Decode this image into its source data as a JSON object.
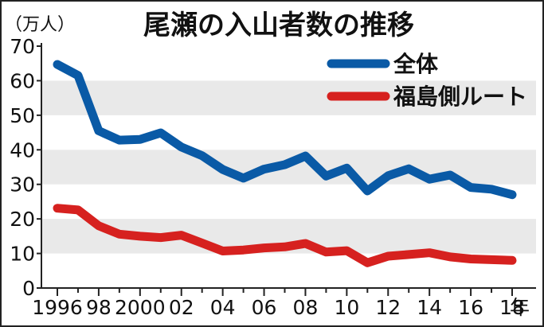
{
  "chart_data": {
    "type": "line",
    "title": "尾瀬の入山者数の推移",
    "ylabel": "（万人）",
    "year_suffix": "年",
    "ylim": [
      0,
      70
    ],
    "y_ticks": [
      0,
      10,
      20,
      30,
      40,
      50,
      60,
      70
    ],
    "x_tick_labels": [
      "1996",
      "98",
      "2000",
      "02",
      "04",
      "06",
      "08",
      "10",
      "12",
      "14",
      "16",
      "18"
    ],
    "x": [
      1996,
      1997,
      1998,
      1999,
      2000,
      2001,
      2002,
      2003,
      2004,
      2005,
      2006,
      2007,
      2008,
      2009,
      2010,
      2011,
      2012,
      2013,
      2014,
      2015,
      2016,
      2017,
      2018
    ],
    "grid": "alternating horizontal bands",
    "legend_position": "top-right",
    "series": [
      {
        "name": "全体",
        "color": "#0a5aa6",
        "values": [
          64.7,
          61.5,
          45.5,
          42.8,
          43.0,
          44.9,
          40.8,
          38.3,
          34.3,
          31.8,
          34.4,
          35.7,
          38.2,
          32.4,
          34.7,
          28.1,
          32.5,
          34.5,
          31.5,
          32.7,
          29.1,
          28.6,
          27.0
        ]
      },
      {
        "name": "福島側ルート",
        "color": "#d6211f",
        "values": [
          23.1,
          22.6,
          18.0,
          15.6,
          15.0,
          14.6,
          15.3,
          13.0,
          10.7,
          11.0,
          11.6,
          11.9,
          12.9,
          10.4,
          10.8,
          7.3,
          9.2,
          9.7,
          10.2,
          9.0,
          8.4,
          8.2,
          8.0
        ]
      }
    ]
  }
}
